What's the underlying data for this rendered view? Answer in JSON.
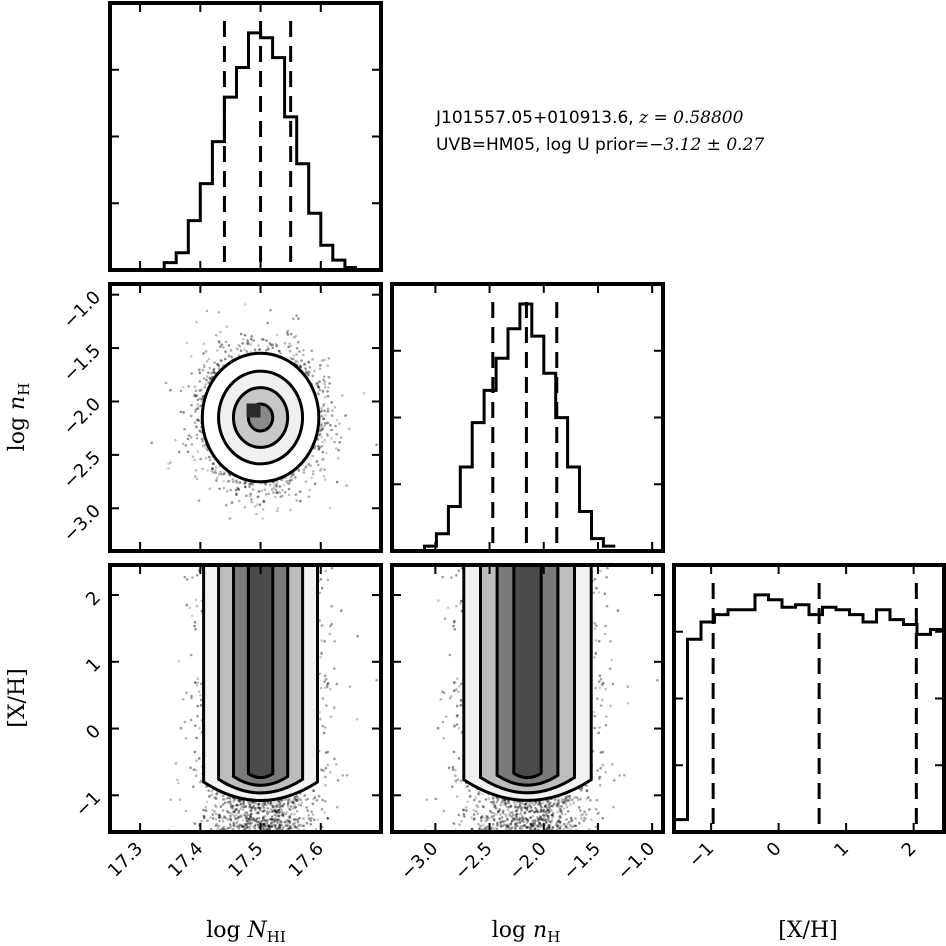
{
  "annotation": {
    "line1_text": "J101557.05+010913.6, ",
    "line1_math": "z = 0.58800",
    "line2_text": "UVB=HM05, log U prior=",
    "line2_math": "−3.12 ± 0.27"
  },
  "chart_data": {
    "type": "corner",
    "parameters": [
      {
        "key": "logNHI",
        "label_main": "log N",
        "label_sub": "HI",
        "range": [
          17.25,
          17.7
        ],
        "ticks": [
          17.3,
          17.4,
          17.5,
          17.6
        ],
        "tick_labels": [
          "17.3",
          "17.4",
          "17.5",
          "17.6"
        ],
        "quantiles": [
          17.44,
          17.5,
          17.55
        ]
      },
      {
        "key": "lognH",
        "label_main": "log n",
        "label_sub": "H",
        "range": [
          -3.4,
          -0.9
        ],
        "ticks": [
          -3.0,
          -2.5,
          -2.0,
          -1.5,
          -1.0
        ],
        "tick_labels": [
          "−3.0",
          "−2.5",
          "−2.0",
          "−1.5",
          "−1.0"
        ],
        "quantiles": [
          -2.47,
          -2.16,
          -1.88
        ]
      },
      {
        "key": "XH",
        "label_main": "[X/H]",
        "label_sub": "",
        "range": [
          -1.55,
          2.45
        ],
        "ticks": [
          -1,
          0,
          1,
          2
        ],
        "tick_labels": [
          "−1",
          "0",
          "1",
          "2"
        ],
        "quantiles": [
          -0.97,
          0.6,
          2.04
        ]
      }
    ],
    "histograms": {
      "logNHI": {
        "bins": [
          17.34,
          17.36,
          17.38,
          17.4,
          17.42,
          17.44,
          17.46,
          17.48,
          17.5,
          17.52,
          17.54,
          17.56,
          17.58,
          17.6,
          17.62,
          17.64,
          17.66
        ],
        "counts": [
          0.03,
          0.07,
          0.2,
          0.35,
          0.52,
          0.7,
          0.82,
          0.96,
          0.94,
          0.86,
          0.62,
          0.43,
          0.23,
          0.1,
          0.04,
          0.01
        ]
      },
      "lognH": {
        "bins": [
          -3.1,
          -2.99,
          -2.88,
          -2.77,
          -2.66,
          -2.55,
          -2.44,
          -2.33,
          -2.22,
          -2.11,
          -2.0,
          -1.89,
          -1.78,
          -1.67,
          -1.56,
          -1.45,
          -1.34
        ],
        "counts": [
          0.02,
          0.07,
          0.18,
          0.34,
          0.52,
          0.65,
          0.78,
          0.9,
          1.0,
          0.87,
          0.72,
          0.54,
          0.34,
          0.16,
          0.05,
          0.02
        ]
      },
      "XH": {
        "bins": [
          -1.55,
          -1.35,
          -1.15,
          -0.95,
          -0.75,
          -0.55,
          -0.35,
          -0.15,
          0.05,
          0.25,
          0.45,
          0.65,
          0.85,
          1.05,
          1.25,
          1.45,
          1.65,
          1.85,
          2.05,
          2.25,
          2.45
        ],
        "counts": [
          0.05,
          0.78,
          0.85,
          0.88,
          0.9,
          0.9,
          0.96,
          0.94,
          0.91,
          0.92,
          0.88,
          0.91,
          0.9,
          0.88,
          0.85,
          0.9,
          0.86,
          0.84,
          0.8,
          0.82
        ]
      }
    },
    "correlations": {
      "lognH_vs_logNHI": {
        "center": [
          17.5,
          -2.15
        ],
        "sigma": [
          0.045,
          0.28
        ]
      },
      "XH_vs_logNHI": {
        "center_x": 17.5,
        "sigma_x": 0.045,
        "y_range": [
          -1.1,
          2.45
        ]
      },
      "XH_vs_lognH": {
        "center_x": -2.15,
        "sigma_x": 0.28,
        "y_range": [
          -1.1,
          2.45
        ]
      }
    },
    "grid": false,
    "legend": "none"
  }
}
